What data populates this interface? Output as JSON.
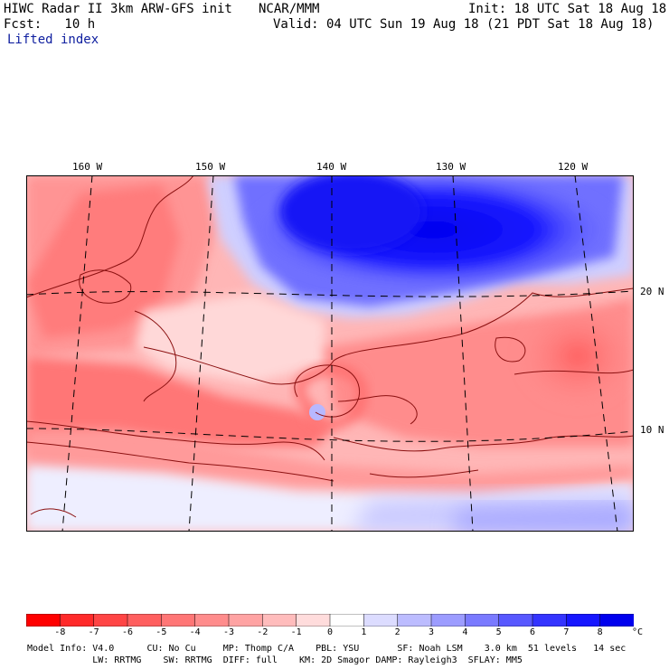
{
  "header": {
    "title": "HIWC Radar II 3km ARW-GFS init",
    "org": "NCAR/MMM",
    "init": "Init: 18 UTC Sat 18 Aug 18",
    "fcst": "Fcst:   10 h",
    "valid": "Valid: 04 UTC Sun 19 Aug 18 (21 PDT Sat 18 Aug 18)",
    "field": "Lifted index"
  },
  "map": {
    "lon_labels": [
      "160 W",
      "150 W",
      "140 W",
      "130 W",
      "120 W"
    ],
    "lat_labels": [
      "20 N",
      "10 N"
    ],
    "graticule_color": "#000000",
    "contour_color": "#8b1010"
  },
  "colorbar": {
    "labels": [
      "-8",
      "-7",
      "-6",
      "-5",
      "-4",
      "-3",
      "-2",
      "-1",
      "0",
      "1",
      "2",
      "3",
      "4",
      "5",
      "6",
      "7",
      "8"
    ],
    "unit": "°C",
    "colors": [
      "#ff0000",
      "#ff2a2a",
      "#ff4545",
      "#ff5f5f",
      "#ff7676",
      "#ff8c8c",
      "#ffa3a3",
      "#ffbcbc",
      "#ffdcdc",
      "#ffffff",
      "#dcdcff",
      "#bcbcff",
      "#9c9cff",
      "#7a7aff",
      "#5858ff",
      "#3434ff",
      "#1616ff",
      "#0000ee"
    ]
  },
  "model_info": {
    "line1": "Model Info: V4.0      CU: No Cu     MP: Thomp C/A    PBL: YSU       SF: Noah LSM    3.0 km  51 levels   14 sec",
    "line2": "            LW: RRTMG    SW: RRTMG  DIFF: full    KM: 2D Smagor DAMP: Rayleigh3  SFLAY: MM5"
  }
}
